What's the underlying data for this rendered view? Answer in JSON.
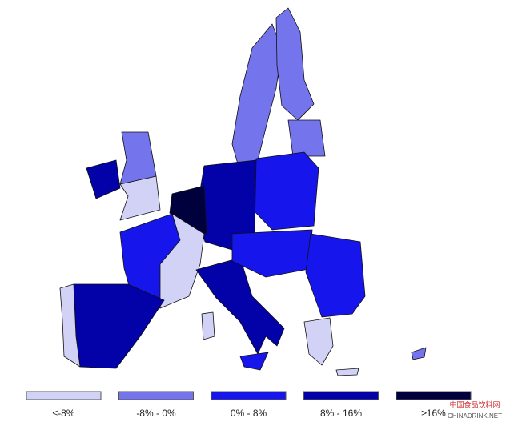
{
  "legend": {
    "items": [
      {
        "label": "≤-8%",
        "color": "#d2d2f7"
      },
      {
        "label": "-8% - 0%",
        "color": "#7474ec"
      },
      {
        "label": "0% - 8%",
        "color": "#1616ec"
      },
      {
        "label": "8% - 16%",
        "color": "#0202a8"
      },
      {
        "label": "≥16%",
        "color": "#00003c"
      }
    ]
  },
  "watermark": {
    "title": "中国食品饮料网",
    "url": "CHINADRINK.NET"
  }
}
